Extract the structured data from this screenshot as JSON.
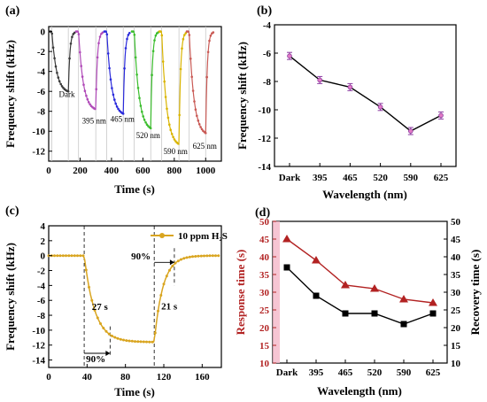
{
  "chart_data": [
    {
      "panel": "(a)",
      "type": "line",
      "xlabel": "Time (s)",
      "ylabel": "Frequency shift (kHz)",
      "xlim": [
        0,
        1100
      ],
      "ylim": [
        -13,
        0.5
      ],
      "xticks": [
        0,
        200,
        400,
        600,
        800,
        1000
      ],
      "yticks": [
        0,
        -2,
        -4,
        -6,
        -8,
        -10,
        -12
      ],
      "series": [
        {
          "name": "Dark",
          "color": "#3a3a3a",
          "t_on": 20,
          "t_off": 125,
          "t_end": 165,
          "min": -6.2
        },
        {
          "name": "395 nm",
          "color": "#b04ab8",
          "t_on": 190,
          "t_off": 300,
          "t_end": 345,
          "min": -8.0
        },
        {
          "name": "465 nm",
          "color": "#2a2adb",
          "t_on": 370,
          "t_off": 475,
          "t_end": 520,
          "min": -8.5
        },
        {
          "name": "520 nm",
          "color": "#3bbd2d",
          "t_on": 545,
          "t_off": 650,
          "t_end": 700,
          "min": -10.0
        },
        {
          "name": "590 nm",
          "color": "#d9b400",
          "t_on": 720,
          "t_off": 830,
          "t_end": 875,
          "min": -11.6
        },
        {
          "name": "625 nm",
          "color": "#c95a55",
          "t_on": 895,
          "t_off": 1000,
          "t_end": 1050,
          "min": -10.5
        }
      ]
    },
    {
      "panel": "(b)",
      "type": "line",
      "xlabel": "Wavelength (nm)",
      "ylabel": "Frequency shift (kHz)",
      "categories": [
        "Dark",
        "395",
        "465",
        "520",
        "590",
        "625"
      ],
      "values": [
        -6.2,
        -7.9,
        -8.4,
        -9.8,
        -11.5,
        -10.4
      ],
      "ylim": [
        -14,
        -4
      ],
      "yticks": [
        -4,
        -6,
        -8,
        -10,
        -12,
        -14
      ]
    },
    {
      "panel": "(c)",
      "type": "line",
      "xlabel": "Time (s)",
      "ylabel": "Frequency shift (kHz)",
      "legend": "10 ppm H₂S",
      "xlim": [
        0,
        180
      ],
      "ylim": [
        -15,
        4
      ],
      "xticks": [
        0,
        40,
        80,
        120,
        160
      ],
      "yticks": [
        4,
        2,
        0,
        -2,
        -4,
        -6,
        -8,
        -10,
        -12,
        -14
      ],
      "gas_on": 37,
      "gas_off": 110,
      "min": -11.6,
      "annotations": [
        "27 s",
        "90%",
        "21 s",
        "90%"
      ]
    },
    {
      "panel": "(d)",
      "type": "line",
      "xlabel": "Wavelength (nm)",
      "ylabel_left": "Response time (s)",
      "ylabel_right": "Recovery time (s)",
      "categories": [
        "Dark",
        "395",
        "465",
        "520",
        "590",
        "625"
      ],
      "ylim": [
        10,
        50
      ],
      "yticks": [
        10,
        15,
        20,
        25,
        30,
        35,
        40,
        45,
        50
      ],
      "series": [
        {
          "name": "Response time (s)",
          "color": "#b22222",
          "values": [
            45,
            39,
            32,
            31,
            28,
            27
          ]
        },
        {
          "name": "Recovery time (s)",
          "color": "#000000",
          "values": [
            37,
            29,
            24,
            24,
            21,
            24
          ]
        }
      ]
    }
  ]
}
